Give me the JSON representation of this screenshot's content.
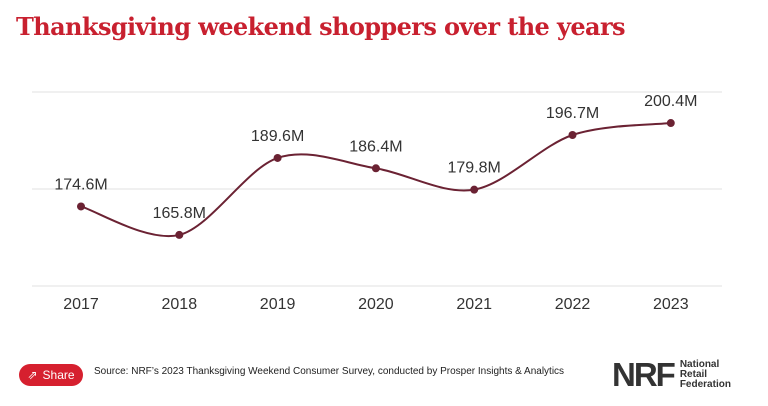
{
  "chart_data": {
    "type": "line",
    "title": "Thanksgiving weekend shoppers over the years",
    "categories": [
      "2017",
      "2018",
      "2019",
      "2020",
      "2021",
      "2022",
      "2023"
    ],
    "values": [
      174.6,
      165.8,
      189.6,
      186.4,
      179.8,
      196.7,
      200.4
    ],
    "data_labels": [
      "174.6M",
      "165.8M",
      "189.6M",
      "186.4M",
      "179.8M",
      "196.7M",
      "200.4M"
    ],
    "ylim": [
      150,
      210
    ],
    "gridlines": [
      150,
      180,
      210
    ],
    "grid": true,
    "xlabel": "",
    "ylabel": "",
    "line_color": "#6b2233"
  },
  "footer": {
    "share_label": "Share",
    "source": "Source: NRF’s 2023 Thanksgiving Weekend Consumer Survey, conducted by Prosper Insights & Analytics",
    "logo_mark": "NRF",
    "logo_lines": [
      "National",
      "Retail",
      "Federation"
    ]
  },
  "colors": {
    "title": "#c8202f",
    "share_bg": "#d6202f"
  }
}
